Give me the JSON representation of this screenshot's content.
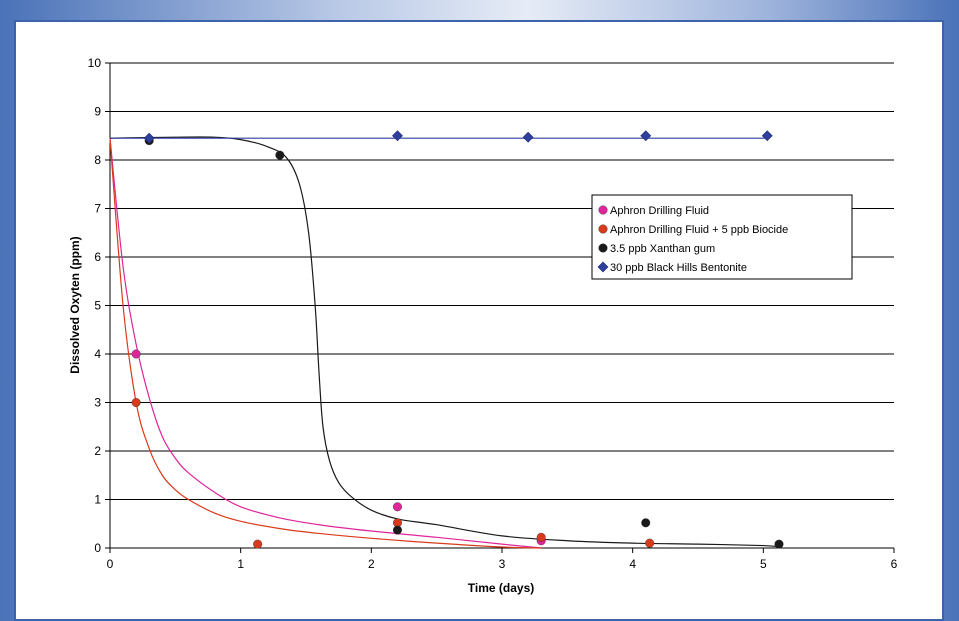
{
  "chart_data": {
    "type": "scatter",
    "title": "",
    "xlabel": "Time (days)",
    "ylabel": "Dissolved Oxyten (ppm)",
    "xlim": [
      0,
      6
    ],
    "ylim": [
      0,
      10
    ],
    "xticks": [
      "0",
      "1",
      "2",
      "3",
      "4",
      "5",
      "6"
    ],
    "yticks": [
      "0",
      "1",
      "2",
      "3",
      "4",
      "5",
      "6",
      "7",
      "8",
      "9",
      "10"
    ],
    "grid": "horizontal",
    "legend_position": "right-upper",
    "series": [
      {
        "name": "Aphron Drilling Fluid",
        "color": "#e0249a",
        "marker": "circle",
        "points": [
          [
            0.2,
            4.0
          ],
          [
            2.2,
            0.85
          ],
          [
            3.3,
            0.15
          ]
        ],
        "curve": [
          [
            0.0,
            8.45
          ],
          [
            0.1,
            5.8
          ],
          [
            0.2,
            4.2
          ],
          [
            0.3,
            3.1
          ],
          [
            0.4,
            2.3
          ],
          [
            0.5,
            1.85
          ],
          [
            0.6,
            1.55
          ],
          [
            0.8,
            1.15
          ],
          [
            1.0,
            0.85
          ],
          [
            1.3,
            0.62
          ],
          [
            1.6,
            0.48
          ],
          [
            2.0,
            0.35
          ],
          [
            2.5,
            0.22
          ],
          [
            3.0,
            0.08
          ],
          [
            3.3,
            0.0
          ]
        ]
      },
      {
        "name": "Aphron Drilling Fluid + 5 ppb Biocide",
        "color": "#d93a1c",
        "marker": "circle",
        "points": [
          [
            0.2,
            3.0
          ],
          [
            1.13,
            0.08
          ],
          [
            2.2,
            0.52
          ],
          [
            3.3,
            0.22
          ],
          [
            4.13,
            0.1
          ]
        ],
        "curve": [
          [
            0.0,
            8.45
          ],
          [
            0.1,
            5.0
          ],
          [
            0.2,
            3.0
          ],
          [
            0.3,
            2.05
          ],
          [
            0.4,
            1.5
          ],
          [
            0.5,
            1.2
          ],
          [
            0.6,
            1.0
          ],
          [
            0.8,
            0.72
          ],
          [
            1.0,
            0.55
          ],
          [
            1.3,
            0.4
          ],
          [
            1.6,
            0.3
          ],
          [
            2.0,
            0.2
          ],
          [
            2.5,
            0.1
          ],
          [
            3.0,
            0.02
          ],
          [
            3.3,
            0.0
          ]
        ]
      },
      {
        "name": "3.5 ppb Xanthan gum",
        "color": "#1a1a1a",
        "marker": "circle",
        "points": [
          [
            0.3,
            8.4
          ],
          [
            1.3,
            8.1
          ],
          [
            2.2,
            0.37
          ],
          [
            4.1,
            0.52
          ],
          [
            5.12,
            0.08
          ]
        ],
        "curve": [
          [
            0.0,
            8.45
          ],
          [
            0.5,
            8.47
          ],
          [
            0.8,
            8.47
          ],
          [
            1.0,
            8.42
          ],
          [
            1.2,
            8.28
          ],
          [
            1.35,
            8.05
          ],
          [
            1.45,
            7.5
          ],
          [
            1.52,
            6.5
          ],
          [
            1.57,
            5.0
          ],
          [
            1.6,
            3.6
          ],
          [
            1.63,
            2.5
          ],
          [
            1.68,
            1.8
          ],
          [
            1.75,
            1.35
          ],
          [
            1.85,
            1.05
          ],
          [
            2.0,
            0.78
          ],
          [
            2.2,
            0.6
          ],
          [
            2.5,
            0.48
          ],
          [
            3.0,
            0.25
          ],
          [
            3.5,
            0.15
          ],
          [
            4.0,
            0.1
          ],
          [
            4.5,
            0.08
          ],
          [
            5.0,
            0.05
          ],
          [
            5.12,
            0.02
          ]
        ]
      },
      {
        "name": "30 ppb Black Hills Bentonite",
        "color": "#2f3f9e",
        "marker": "diamond",
        "points": [
          [
            0.3,
            8.45
          ],
          [
            2.2,
            8.5
          ],
          [
            3.2,
            8.47
          ],
          [
            4.1,
            8.5
          ],
          [
            5.03,
            8.5
          ]
        ],
        "curve": [
          [
            0.0,
            8.45
          ],
          [
            5.03,
            8.45
          ]
        ]
      }
    ]
  }
}
